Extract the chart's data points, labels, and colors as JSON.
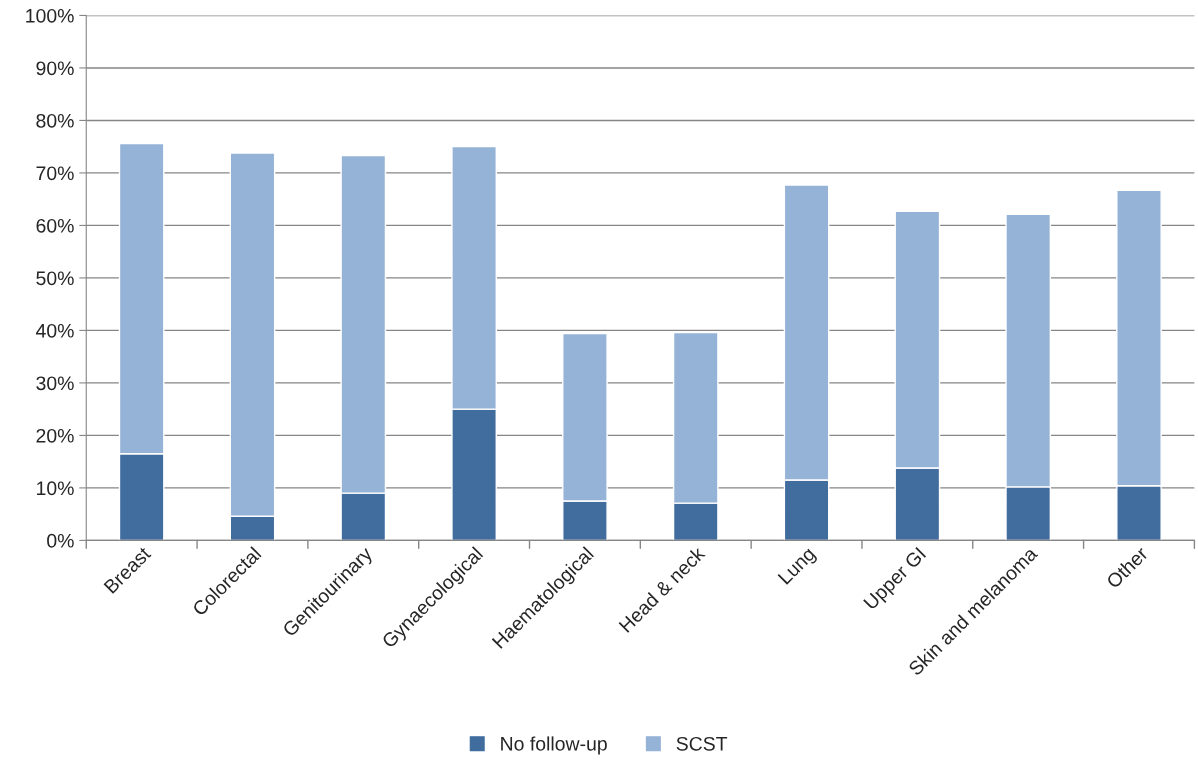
{
  "chart_data": {
    "type": "bar",
    "stacked": true,
    "categories": [
      "Breast",
      "Colorectal",
      "Genitourinary",
      "Gynaecological",
      "Haematological",
      "Head & neck",
      "Lung",
      "Upper GI",
      "Skin and melanoma",
      "Other"
    ],
    "series": [
      {
        "name": "No follow-up",
        "color": "#416c9e",
        "values": [
          16.5,
          4.6,
          9.0,
          25.0,
          7.5,
          7.1,
          11.5,
          13.8,
          10.2,
          10.4
        ]
      },
      {
        "name": "SCST",
        "color": "#95b3d7",
        "values": [
          59.1,
          69.2,
          64.3,
          50.0,
          31.9,
          32.5,
          56.2,
          48.9,
          51.9,
          56.3
        ]
      }
    ],
    "ylim": [
      0,
      100
    ],
    "yticks": [
      {
        "value": 0,
        "label": "0%"
      },
      {
        "value": 10,
        "label": "10%"
      },
      {
        "value": 20,
        "label": "20%"
      },
      {
        "value": 30,
        "label": "30%"
      },
      {
        "value": 40,
        "label": "40%"
      },
      {
        "value": 50,
        "label": "50%"
      },
      {
        "value": 60,
        "label": "60%"
      },
      {
        "value": 70,
        "label": "70%"
      },
      {
        "value": 80,
        "label": "80%"
      },
      {
        "value": 90,
        "label": "90%"
      },
      {
        "value": 100,
        "label": "100%"
      }
    ],
    "grid": "y",
    "legend": "bottom"
  }
}
